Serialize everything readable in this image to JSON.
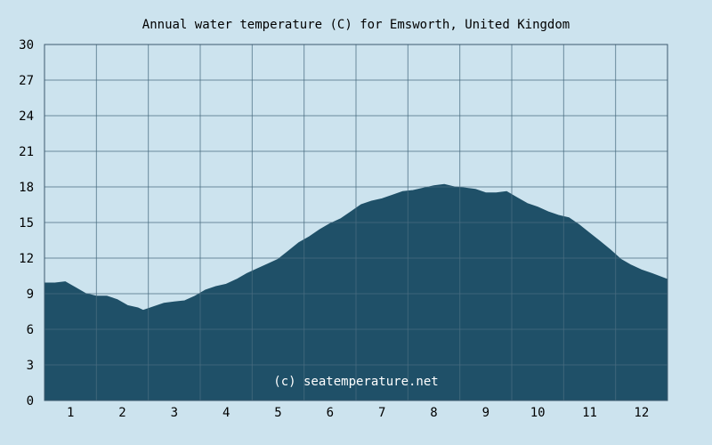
{
  "chart_data": {
    "type": "area",
    "title": "Annual water temperature (C) for Emsworth, United Kingdom",
    "watermark": "(c) seatemperature.net",
    "xlabel": "",
    "ylabel": "",
    "ylim": [
      0,
      30
    ],
    "xlim": [
      0.5,
      12.5
    ],
    "yticks": [
      "0",
      "3",
      "6",
      "9",
      "12",
      "15",
      "18",
      "21",
      "24",
      "27",
      "30"
    ],
    "xticks": [
      "1",
      "2",
      "3",
      "4",
      "5",
      "6",
      "7",
      "8",
      "9",
      "10",
      "11",
      "12"
    ],
    "grid": true,
    "colors": {
      "background": "#cce3ee",
      "fill": "#1f5068",
      "grid": "#4a6c80",
      "axis": "#3d5a6e"
    },
    "series": [
      {
        "x": [
          0.5,
          0.7,
          0.9,
          1.1,
          1.3,
          1.5,
          1.7,
          1.9,
          2.1,
          2.3,
          2.4,
          2.6,
          2.8,
          3.0,
          3.2,
          3.4,
          3.6,
          3.8,
          4.0,
          4.2,
          4.4,
          4.6,
          4.8,
          5.0,
          5.2,
          5.4,
          5.6,
          5.8,
          6.0,
          6.2,
          6.4,
          6.6,
          6.8,
          7.0,
          7.2,
          7.4,
          7.6,
          7.8,
          8.0,
          8.2,
          8.4,
          8.6,
          8.8,
          9.0,
          9.2,
          9.4,
          9.6,
          9.8,
          10.0,
          10.2,
          10.4,
          10.6,
          10.8,
          11.0,
          11.2,
          11.4,
          11.6,
          11.8,
          12.0,
          12.2,
          12.5
        ],
        "values": [
          9.9,
          9.9,
          10.0,
          9.5,
          9.0,
          8.8,
          8.8,
          8.5,
          8.0,
          7.8,
          7.6,
          7.9,
          8.2,
          8.3,
          8.4,
          8.8,
          9.3,
          9.6,
          9.8,
          10.2,
          10.7,
          11.1,
          11.5,
          11.9,
          12.6,
          13.3,
          13.8,
          14.4,
          14.9,
          15.3,
          15.9,
          16.5,
          16.8,
          17.0,
          17.3,
          17.6,
          17.7,
          17.9,
          18.1,
          18.2,
          18.0,
          17.9,
          17.8,
          17.5,
          17.5,
          17.6,
          17.1,
          16.6,
          16.3,
          15.9,
          15.6,
          15.4,
          14.8,
          14.1,
          13.4,
          12.7,
          11.9,
          11.4,
          11.0,
          10.7,
          10.2
        ]
      }
    ]
  }
}
